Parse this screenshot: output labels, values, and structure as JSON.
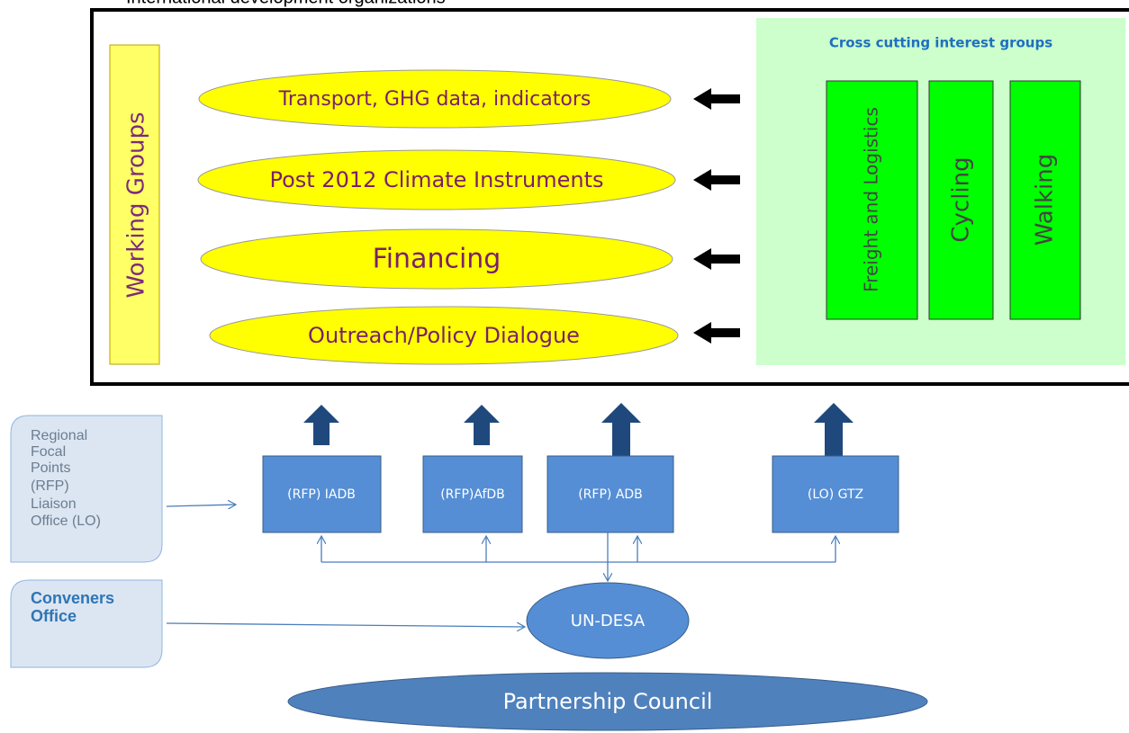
{
  "header": {
    "title": "International development organizations"
  },
  "working_groups": {
    "label": "Working Groups",
    "items": [
      "Transport, GHG data, indicators",
      "Post 2012 Climate Instruments",
      "Financing",
      "Outreach/Policy Dialogue"
    ]
  },
  "interest_groups": {
    "title": "Cross cutting interest groups",
    "items": [
      "Freight and Logistics",
      "Cycling",
      "Walking"
    ]
  },
  "callouts": [
    {
      "lines": [
        "Regional",
        "Focal",
        "Points",
        "(RFP)",
        "Liaison",
        "Office (LO)"
      ]
    },
    {
      "lines": [
        "Conveners",
        "Office"
      ]
    }
  ],
  "nodes": [
    "(RFP) IADB",
    "(RFP)AfDB",
    "(RFP) ADB",
    "(LO) GTZ"
  ],
  "hub": "UN-DESA",
  "council": "Partnership Council"
}
